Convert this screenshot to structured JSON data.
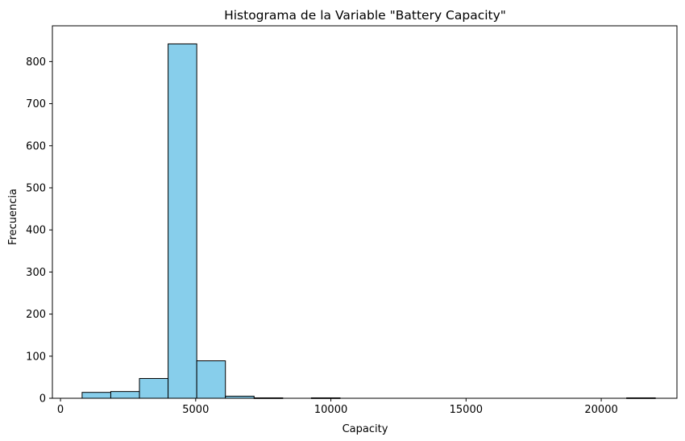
{
  "chart_data": {
    "type": "bar",
    "title": "Histograma de la Variable \"Battery Capacity\"",
    "xlabel": "Capacity",
    "ylabel": "Frecuencia",
    "xlim": [
      -300,
      22800
    ],
    "ylim": [
      0,
      885
    ],
    "x_ticks": [
      0,
      5000,
      10000,
      15000,
      20000
    ],
    "x_tick_labels": [
      "0",
      "5000",
      "10000",
      "15000",
      "20000"
    ],
    "y_ticks": [
      0,
      100,
      200,
      300,
      400,
      500,
      600,
      700,
      800
    ],
    "y_tick_labels": [
      "0",
      "100",
      "200",
      "300",
      "400",
      "500",
      "600",
      "700",
      "800"
    ],
    "bins": [
      {
        "x0": 800,
        "x1": 1860,
        "count": 14
      },
      {
        "x0": 1860,
        "x1": 2920,
        "count": 16
      },
      {
        "x0": 2920,
        "x1": 3980,
        "count": 47
      },
      {
        "x0": 3980,
        "x1": 5040,
        "count": 842
      },
      {
        "x0": 5040,
        "x1": 6100,
        "count": 89
      },
      {
        "x0": 6100,
        "x1": 7160,
        "count": 5
      },
      {
        "x0": 7160,
        "x1": 8220,
        "count": 1
      },
      {
        "x0": 8220,
        "x1": 9280,
        "count": 0
      },
      {
        "x0": 9280,
        "x1": 10340,
        "count": 1
      },
      {
        "x0": 10340,
        "x1": 11400,
        "count": 0
      },
      {
        "x0": 11400,
        "x1": 12460,
        "count": 0
      },
      {
        "x0": 12460,
        "x1": 13520,
        "count": 0
      },
      {
        "x0": 13520,
        "x1": 14580,
        "count": 0
      },
      {
        "x0": 14580,
        "x1": 15640,
        "count": 0
      },
      {
        "x0": 15640,
        "x1": 16700,
        "count": 0
      },
      {
        "x0": 16700,
        "x1": 17760,
        "count": 0
      },
      {
        "x0": 17760,
        "x1": 18820,
        "count": 0
      },
      {
        "x0": 18820,
        "x1": 19880,
        "count": 0
      },
      {
        "x0": 19880,
        "x1": 20940,
        "count": 0
      },
      {
        "x0": 20940,
        "x1": 22000,
        "count": 1
      }
    ],
    "bar_color": "#87CEEB",
    "edge_color": "#000000",
    "grid": false
  }
}
